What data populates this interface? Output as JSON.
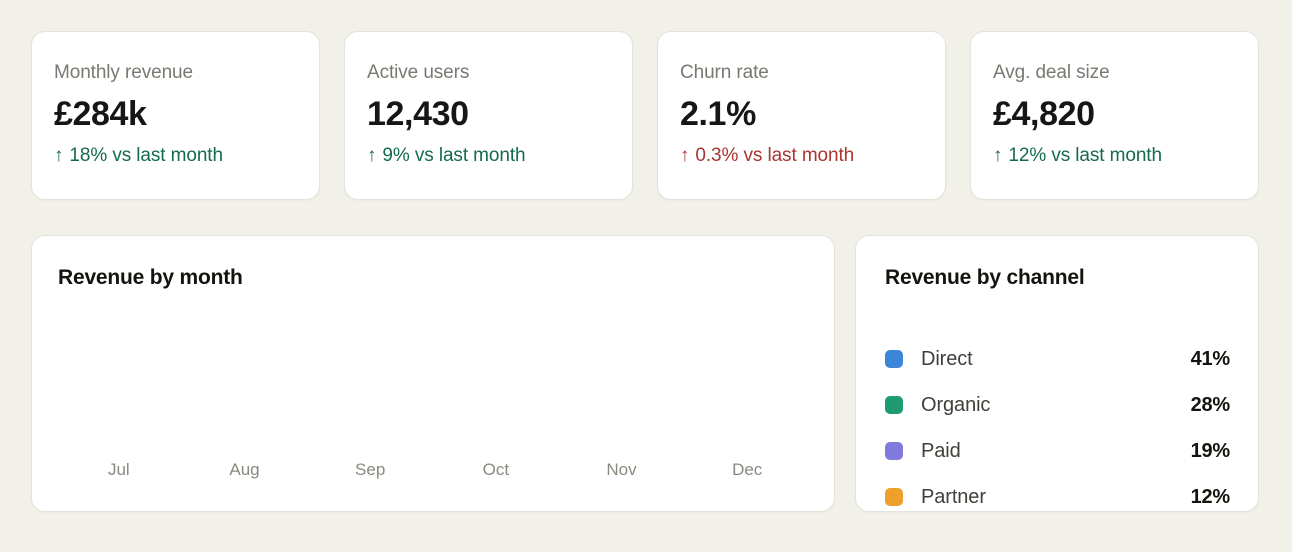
{
  "page": {
    "background": "#f2f1e9",
    "card_background": "#ffffff",
    "card_border": "#e4e3db"
  },
  "colors": {
    "kpi_label_gray": "#797871",
    "kpi_value_black": "#161614",
    "delta_positive_green": "#146b4b",
    "delta_negative_red": "#a93532",
    "axis_label_gray": "#8a897f"
  },
  "kpis": [
    {
      "label": "Monthly revenue",
      "value": "£284k",
      "arrow": "↑",
      "delta": "18% vs last month",
      "trend": "good"
    },
    {
      "label": "Active users",
      "value": "12,430",
      "arrow": "↑",
      "delta": "9% vs last month",
      "trend": "good"
    },
    {
      "label": "Churn rate",
      "value": "2.1%",
      "arrow": "↑",
      "delta": "0.3% vs last month",
      "trend": "bad"
    },
    {
      "label": "Avg. deal size",
      "value": "£4,820",
      "arrow": "↑",
      "delta": "12% vs last month",
      "trend": "good"
    }
  ],
  "revenue_by_month": {
    "title": "Revenue by month",
    "months": [
      "Jul",
      "Aug",
      "Sep",
      "Oct",
      "Nov",
      "Dec"
    ]
  },
  "revenue_by_channel": {
    "title": "Revenue by channel",
    "items": [
      {
        "label": "Direct",
        "value": "41%",
        "color": "#3b86d9"
      },
      {
        "label": "Organic",
        "value": "28%",
        "color": "#1f9b70"
      },
      {
        "label": "Paid",
        "value": "19%",
        "color": "#817ade"
      },
      {
        "label": "Partner",
        "value": "12%",
        "color": "#ef9f2b"
      }
    ]
  },
  "chart_data": [
    {
      "type": "bar",
      "title": "Revenue by month",
      "categories": [
        "Jul",
        "Aug",
        "Sep",
        "Oct",
        "Nov",
        "Dec"
      ],
      "values": [],
      "values_visible": false,
      "xlabel": "",
      "ylabel": "",
      "grid": false,
      "legend_position": "none"
    },
    {
      "type": "table",
      "title": "Revenue by channel",
      "categories": [
        "Direct",
        "Organic",
        "Paid",
        "Partner"
      ],
      "values": [
        41,
        28,
        19,
        12
      ],
      "unit": "%",
      "legend_position": "left"
    }
  ]
}
